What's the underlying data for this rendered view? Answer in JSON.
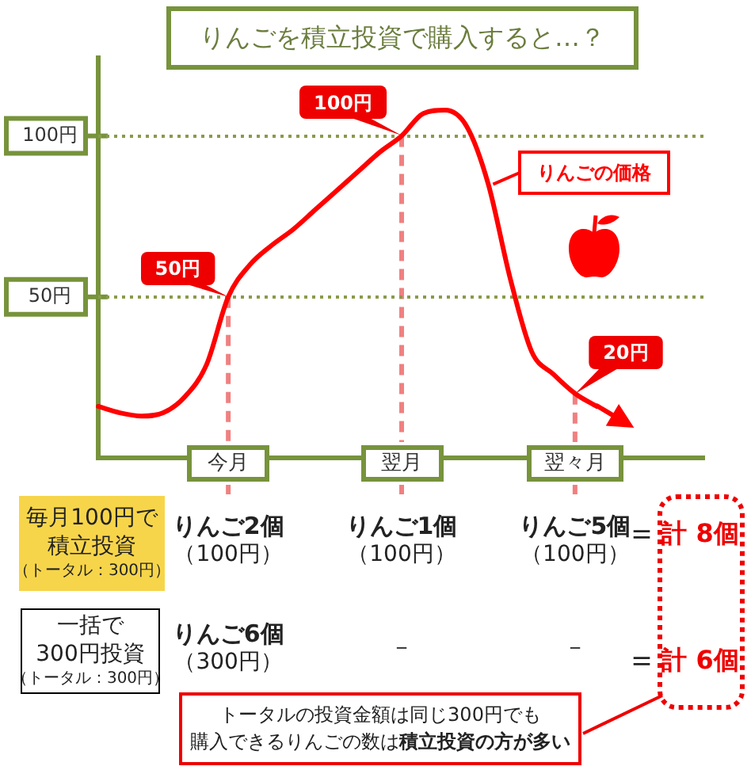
{
  "chart_data": {
    "type": "line",
    "title": "りんごを積立投資で購入すると…？",
    "categories": [
      null,
      null,
      null,
      null,
      null,
      null,
      "今月",
      null,
      null,
      null,
      null,
      null,
      null,
      null,
      "翌月",
      null,
      null,
      null,
      null,
      null,
      null,
      null,
      "翌々月",
      null,
      null,
      null,
      null,
      null,
      null
    ],
    "series": [
      {
        "name": "りんごの価格",
        "color": "#ff0000",
        "values": [
          16,
          14,
          13,
          14,
          19,
          29,
          50,
          60,
          66,
          71,
          77,
          83,
          89,
          95,
          100,
          107,
          108,
          103,
          85,
          56,
          33,
          26,
          20,
          16,
          null,
          null,
          null,
          null,
          null
        ]
      }
    ],
    "ylim": [
      0,
      125
    ],
    "yticks": [
      {
        "value": 50,
        "label": "50円"
      },
      {
        "value": 100,
        "label": "100円"
      }
    ],
    "grid": "y",
    "marker": "none",
    "ref_lines": [
      {
        "axis": "x",
        "value": "今月",
        "color": "#f08080",
        "line_style": "dashed"
      },
      {
        "axis": "x",
        "value": "翌月",
        "color": "#f08080",
        "line_style": "dashed"
      },
      {
        "axis": "x",
        "value": "翌々月",
        "color": "#f08080",
        "line_style": "dashed"
      }
    ],
    "annotations": [
      {
        "text": "50円",
        "x": "今月",
        "y": 50
      },
      {
        "text": "100円",
        "x": "翌月",
        "y": 100
      },
      {
        "text": "20円",
        "x": "翌々月",
        "y": 20
      },
      "毎月100円で",
      "積立投資",
      "（トータル：300円）",
      "りんご2個",
      "（100円）",
      "りんご1個",
      "（100円）",
      "りんご5個",
      "（100円）",
      "＝",
      "計 8個",
      "一括で",
      "300円投資",
      "（トータル：300円）",
      "りんご6個",
      "（300円）",
      "－",
      "－",
      "＝",
      "計 6個",
      "トータルの投資金額は同じ300円でも",
      "購入できるりんごの数は",
      "積立投資の方が多い"
    ]
  }
}
